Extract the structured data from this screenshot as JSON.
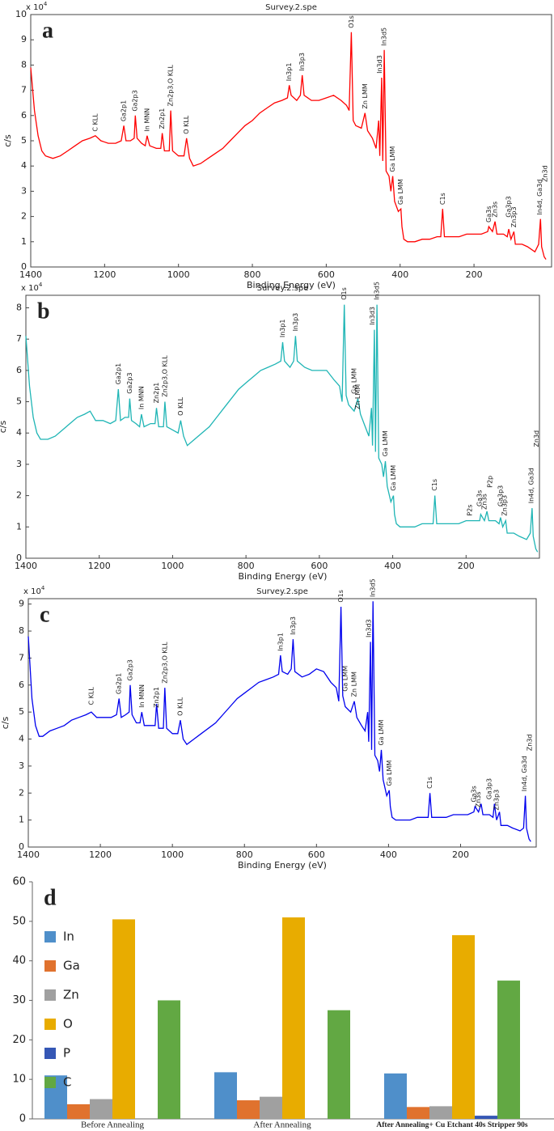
{
  "chart_data": [
    {
      "type": "line",
      "panel_label": "a",
      "title": "Survey.2.spe",
      "y_multiplier": "x 10",
      "y_multiplier_exp": "4",
      "x_label": "Binding Energy (eV)",
      "y_label": "c/s",
      "color": "#ff0000",
      "xlim": [
        1400,
        -10
      ],
      "xticks": [
        1400,
        1200,
        1000,
        800,
        600,
        400,
        200
      ],
      "ylim": [
        0,
        10
      ],
      "yticks": [
        0,
        1,
        2,
        3,
        4,
        5,
        6,
        7,
        8,
        9,
        10
      ],
      "x": [
        1400,
        1390,
        1380,
        1370,
        1360,
        1340,
        1320,
        1300,
        1280,
        1260,
        1240,
        1225,
        1210,
        1190,
        1170,
        1155,
        1148,
        1142,
        1130,
        1120,
        1117,
        1112,
        1100,
        1090,
        1085,
        1078,
        1060,
        1048,
        1044,
        1038,
        1025,
        1021,
        1016,
        1000,
        985,
        978,
        970,
        960,
        940,
        920,
        900,
        880,
        860,
        840,
        820,
        800,
        780,
        760,
        740,
        720,
        705,
        700,
        695,
        680,
        670,
        665,
        660,
        640,
        620,
        600,
        580,
        560,
        545,
        538,
        532,
        527,
        520,
        505,
        495,
        488,
        475,
        465,
        458,
        455,
        450,
        447,
        443,
        438,
        430,
        425,
        420,
        415,
        405,
        398,
        395,
        390,
        380,
        360,
        340,
        320,
        300,
        290,
        285,
        280,
        260,
        240,
        220,
        200,
        180,
        163,
        160,
        150,
        143,
        138,
        120,
        110,
        106,
        100,
        92,
        88,
        70,
        55,
        35,
        25,
        20,
        17,
        10,
        5
      ],
      "values": [
        7.9,
        6.2,
        5.2,
        4.6,
        4.4,
        4.3,
        4.4,
        4.6,
        4.8,
        5.0,
        5.1,
        5.2,
        5.0,
        4.9,
        4.9,
        5.0,
        5.6,
        5.0,
        5.0,
        5.1,
        6.0,
        5.1,
        4.9,
        4.8,
        5.2,
        4.8,
        4.7,
        4.7,
        5.3,
        4.6,
        4.6,
        6.2,
        4.6,
        4.4,
        4.4,
        5.1,
        4.3,
        4.0,
        4.1,
        4.3,
        4.5,
        4.7,
        5.0,
        5.3,
        5.6,
        5.8,
        6.1,
        6.3,
        6.5,
        6.6,
        6.7,
        7.2,
        6.8,
        6.6,
        6.8,
        7.6,
        6.8,
        6.6,
        6.6,
        6.7,
        6.8,
        6.6,
        6.4,
        6.2,
        9.3,
        5.8,
        5.6,
        5.5,
        6.1,
        5.4,
        5.1,
        4.7,
        5.8,
        4.4,
        7.5,
        4.2,
        8.6,
        3.8,
        3.6,
        3.0,
        3.6,
        2.6,
        2.2,
        2.3,
        1.6,
        1.1,
        1.0,
        1.0,
        1.1,
        1.1,
        1.2,
        1.2,
        2.3,
        1.2,
        1.2,
        1.2,
        1.3,
        1.3,
        1.3,
        1.4,
        1.6,
        1.4,
        1.8,
        1.3,
        1.3,
        1.2,
        1.5,
        1.1,
        1.4,
        0.9,
        0.9,
        0.8,
        0.6,
        0.9,
        1.9,
        0.8,
        0.4,
        0.3
      ],
      "annotations": [
        {
          "text": "C KLL",
          "x": 1225,
          "y": 5.3
        },
        {
          "text": "Ga2p1",
          "x": 1148,
          "y": 5.7
        },
        {
          "text": "Ga2p3",
          "x": 1117,
          "y": 6.1
        },
        {
          "text": "In MNN",
          "x": 1085,
          "y": 5.3
        },
        {
          "text": "Zn2p1",
          "x": 1044,
          "y": 5.4
        },
        {
          "text": "Zn2p3,O KLL",
          "x": 1021,
          "y": 6.3
        },
        {
          "text": "O KLL",
          "x": 978,
          "y": 5.2
        },
        {
          "text": "In3p1",
          "x": 700,
          "y": 7.3
        },
        {
          "text": "In3p3",
          "x": 665,
          "y": 7.7
        },
        {
          "text": "O1s",
          "x": 532,
          "y": 9.4
        },
        {
          "text": "Zn LMM",
          "x": 495,
          "y": 6.2
        },
        {
          "text": "In3d3",
          "x": 455,
          "y": 7.6
        },
        {
          "text": "In3d5",
          "x": 443,
          "y": 8.7
        },
        {
          "text": "Ga LMM",
          "x": 420,
          "y": 3.7
        },
        {
          "text": "Ga LMM",
          "x": 398,
          "y": 2.4
        },
        {
          "text": "C1s",
          "x": 285,
          "y": 2.4
        },
        {
          "text": "Ga3s",
          "x": 160,
          "y": 1.7
        },
        {
          "text": "Zn3s",
          "x": 143,
          "y": 1.9
        },
        {
          "text": "Ga3p3",
          "x": 106,
          "y": 1.9
        },
        {
          "text": "Zn3p3",
          "x": 92,
          "y": 1.5
        },
        {
          "text": "In4d, Ga3d",
          "x": 22,
          "y": 2.0
        },
        {
          "text": "Zn3d",
          "x": 8,
          "y": 3.3
        }
      ]
    },
    {
      "type": "line",
      "panel_label": "b",
      "title": "Survey.2.spe",
      "y_multiplier": "x 10",
      "y_multiplier_exp": "4",
      "x_label": "Binding Energy (eV)",
      "y_label": "c/s",
      "color": "#1fb5b5",
      "xlim": [
        1400,
        0
      ],
      "xticks": [
        1400,
        1200,
        1000,
        800,
        600,
        400,
        200
      ],
      "ylim": [
        0,
        8.4
      ],
      "yticks": [
        0,
        1,
        2,
        3,
        4,
        5,
        6,
        7,
        8
      ],
      "x": [
        1400,
        1390,
        1380,
        1370,
        1360,
        1340,
        1320,
        1300,
        1280,
        1260,
        1240,
        1225,
        1210,
        1190,
        1170,
        1155,
        1148,
        1142,
        1130,
        1120,
        1117,
        1112,
        1100,
        1090,
        1085,
        1078,
        1060,
        1048,
        1044,
        1038,
        1025,
        1021,
        1016,
        1000,
        985,
        978,
        970,
        960,
        940,
        920,
        900,
        880,
        860,
        840,
        820,
        800,
        780,
        760,
        740,
        720,
        705,
        700,
        695,
        680,
        670,
        665,
        660,
        640,
        620,
        600,
        580,
        560,
        545,
        538,
        532,
        527,
        520,
        505,
        495,
        488,
        475,
        465,
        458,
        455,
        450,
        447,
        443,
        438,
        430,
        425,
        420,
        415,
        405,
        398,
        395,
        390,
        380,
        360,
        340,
        320,
        300,
        290,
        285,
        280,
        260,
        240,
        220,
        200,
        180,
        163,
        160,
        150,
        143,
        138,
        120,
        110,
        106,
        100,
        92,
        88,
        70,
        55,
        35,
        25,
        20,
        17,
        10,
        5
      ],
      "values": [
        7.1,
        5.5,
        4.5,
        4.0,
        3.8,
        3.8,
        3.9,
        4.1,
        4.3,
        4.5,
        4.6,
        4.7,
        4.4,
        4.4,
        4.3,
        4.4,
        5.4,
        4.4,
        4.5,
        4.5,
        5.1,
        4.4,
        4.3,
        4.2,
        4.6,
        4.2,
        4.3,
        4.3,
        4.8,
        4.2,
        4.2,
        5.0,
        4.2,
        4.1,
        4.0,
        4.4,
        3.9,
        3.6,
        3.8,
        4.0,
        4.2,
        4.5,
        4.8,
        5.1,
        5.4,
        5.6,
        5.8,
        6.0,
        6.1,
        6.2,
        6.3,
        6.9,
        6.3,
        6.1,
        6.3,
        7.1,
        6.3,
        6.1,
        6.0,
        6.0,
        6.0,
        5.7,
        5.5,
        5.0,
        8.1,
        5.2,
        4.9,
        4.7,
        5.1,
        4.6,
        4.2,
        3.9,
        4.8,
        3.6,
        7.3,
        3.4,
        8.1,
        3.2,
        3.0,
        2.6,
        3.1,
        2.3,
        1.8,
        2.0,
        1.4,
        1.1,
        1.0,
        1.0,
        1.0,
        1.1,
        1.1,
        1.1,
        2.0,
        1.1,
        1.1,
        1.1,
        1.1,
        1.2,
        1.2,
        1.2,
        1.4,
        1.2,
        1.5,
        1.2,
        1.2,
        1.1,
        1.3,
        1.0,
        1.2,
        0.8,
        0.8,
        0.7,
        0.6,
        0.8,
        1.6,
        0.7,
        0.3,
        0.2
      ],
      "annotations": [
        {
          "text": "Ga2p1",
          "x": 1148,
          "y": 5.5
        },
        {
          "text": "Ga2p3",
          "x": 1117,
          "y": 5.2
        },
        {
          "text": "In MNN",
          "x": 1085,
          "y": 4.7
        },
        {
          "text": "Zn2p1",
          "x": 1044,
          "y": 4.9
        },
        {
          "text": "Zn2p3,O KLL",
          "x": 1021,
          "y": 5.1
        },
        {
          "text": "O KLL",
          "x": 978,
          "y": 4.5
        },
        {
          "text": "In3p1",
          "x": 700,
          "y": 7.0
        },
        {
          "text": "In3p3",
          "x": 665,
          "y": 7.2
        },
        {
          "text": "O1s",
          "x": 532,
          "y": 8.2
        },
        {
          "text": "Ga LMM",
          "x": 505,
          "y": 5.2
        },
        {
          "text": "Zn LMM",
          "x": 495,
          "y": 4.7
        },
        {
          "text": "In3d3",
          "x": 455,
          "y": 7.4
        },
        {
          "text": "In3d5",
          "x": 443,
          "y": 8.2
        },
        {
          "text": "Ga LMM",
          "x": 420,
          "y": 3.2
        },
        {
          "text": "Ga LMM",
          "x": 398,
          "y": 2.1
        },
        {
          "text": "C1s",
          "x": 285,
          "y": 2.1
        },
        {
          "text": "P2s",
          "x": 190,
          "y": 1.3
        },
        {
          "text": "Ga3s",
          "x": 163,
          "y": 1.6
        },
        {
          "text": "Zn3s",
          "x": 150,
          "y": 1.5
        },
        {
          "text": "P2p",
          "x": 135,
          "y": 2.2
        },
        {
          "text": "Ga3p3",
          "x": 106,
          "y": 1.6
        },
        {
          "text": "Zn3p3",
          "x": 95,
          "y": 1.3
        },
        {
          "text": "In4d, Ga3d",
          "x": 22,
          "y": 1.7
        },
        {
          "text": "Zn3d",
          "x": 8,
          "y": 3.5
        }
      ]
    },
    {
      "type": "line",
      "panel_label": "c",
      "title": "Survey.2.spe",
      "y_multiplier": "x 10",
      "y_multiplier_exp": "4",
      "x_label": "Binding Energy (eV)",
      "y_label": "c/s",
      "color": "#0000ee",
      "xlim": [
        1400,
        -10
      ],
      "xticks": [
        1400,
        1200,
        1000,
        800,
        600,
        400,
        200
      ],
      "ylim": [
        0,
        9.2
      ],
      "yticks": [
        0,
        1,
        2,
        3,
        4,
        5,
        6,
        7,
        8,
        9
      ],
      "x": [
        1400,
        1390,
        1380,
        1370,
        1360,
        1340,
        1320,
        1300,
        1280,
        1260,
        1240,
        1225,
        1210,
        1190,
        1170,
        1155,
        1148,
        1142,
        1130,
        1120,
        1117,
        1112,
        1100,
        1090,
        1085,
        1078,
        1060,
        1048,
        1044,
        1038,
        1025,
        1021,
        1016,
        1000,
        985,
        978,
        970,
        960,
        940,
        920,
        900,
        880,
        860,
        840,
        820,
        800,
        780,
        760,
        740,
        720,
        705,
        700,
        695,
        680,
        670,
        665,
        660,
        640,
        620,
        600,
        580,
        560,
        545,
        538,
        532,
        527,
        520,
        505,
        495,
        488,
        475,
        465,
        458,
        455,
        450,
        447,
        443,
        438,
        430,
        425,
        420,
        415,
        405,
        398,
        395,
        390,
        380,
        360,
        340,
        320,
        300,
        290,
        285,
        280,
        260,
        240,
        220,
        200,
        180,
        163,
        160,
        150,
        143,
        138,
        120,
        110,
        106,
        100,
        92,
        88,
        70,
        55,
        35,
        25,
        20,
        17,
        10,
        5
      ],
      "values": [
        7.8,
        5.5,
        4.5,
        4.1,
        4.1,
        4.3,
        4.4,
        4.5,
        4.7,
        4.8,
        4.9,
        5.0,
        4.8,
        4.8,
        4.8,
        4.9,
        5.5,
        4.8,
        4.9,
        5.0,
        6.0,
        4.9,
        4.6,
        4.6,
        5.0,
        4.5,
        4.5,
        4.5,
        5.3,
        4.4,
        4.4,
        5.9,
        4.4,
        4.2,
        4.2,
        4.7,
        4.0,
        3.8,
        4.0,
        4.2,
        4.4,
        4.6,
        4.9,
        5.2,
        5.5,
        5.7,
        5.9,
        6.1,
        6.2,
        6.3,
        6.4,
        7.1,
        6.5,
        6.4,
        6.6,
        7.7,
        6.5,
        6.3,
        6.4,
        6.6,
        6.5,
        6.1,
        5.9,
        5.4,
        8.9,
        5.6,
        5.2,
        5.0,
        5.4,
        4.8,
        4.5,
        4.3,
        5.0,
        3.9,
        7.6,
        3.6,
        9.1,
        3.4,
        3.2,
        2.8,
        3.6,
        2.5,
        1.9,
        2.1,
        1.5,
        1.1,
        1.0,
        1.0,
        1.0,
        1.1,
        1.1,
        1.1,
        2.0,
        1.1,
        1.1,
        1.1,
        1.2,
        1.2,
        1.2,
        1.3,
        1.5,
        1.3,
        1.6,
        1.2,
        1.2,
        1.1,
        1.6,
        1.0,
        1.3,
        0.8,
        0.8,
        0.7,
        0.6,
        0.7,
        1.9,
        0.7,
        0.3,
        0.2
      ],
      "annotations": [
        {
          "text": "C KLL",
          "x": 1225,
          "y": 5.2
        },
        {
          "text": "Ga2p1",
          "x": 1148,
          "y": 5.6
        },
        {
          "text": "Ga2p3",
          "x": 1117,
          "y": 6.1
        },
        {
          "text": "In MNN",
          "x": 1085,
          "y": 5.1
        },
        {
          "text": "Zn2p1",
          "x": 1044,
          "y": 5.1
        },
        {
          "text": "Zn2p3,O KLL",
          "x": 1021,
          "y": 6.0
        },
        {
          "text": "O KLL",
          "x": 978,
          "y": 4.8
        },
        {
          "text": "In3p1",
          "x": 700,
          "y": 7.2
        },
        {
          "text": "In3p3",
          "x": 665,
          "y": 7.8
        },
        {
          "text": "O1s",
          "x": 532,
          "y": 9.0
        },
        {
          "text": "Ga LMM",
          "x": 520,
          "y": 5.7
        },
        {
          "text": "Zn LMM",
          "x": 495,
          "y": 5.5
        },
        {
          "text": "In3d3",
          "x": 455,
          "y": 7.7
        },
        {
          "text": "In3d5",
          "x": 443,
          "y": 9.2
        },
        {
          "text": "Ga LMM",
          "x": 420,
          "y": 3.7
        },
        {
          "text": "Ga LMM",
          "x": 398,
          "y": 2.2
        },
        {
          "text": "C1s",
          "x": 285,
          "y": 2.1
        },
        {
          "text": "Ga3s",
          "x": 163,
          "y": 1.6
        },
        {
          "text": "Zn3s",
          "x": 150,
          "y": 1.4
        },
        {
          "text": "Ga3p3",
          "x": 120,
          "y": 1.7
        },
        {
          "text": "Zn3p3",
          "x": 100,
          "y": 1.3
        },
        {
          "text": "In4d, Ga3d",
          "x": 22,
          "y": 2.0
        },
        {
          "text": "Zn3d",
          "x": 8,
          "y": 3.5
        }
      ]
    },
    {
      "type": "bar",
      "panel_label": "d",
      "categories": [
        "Before Annealing",
        "After Annealing",
        "After Annealing+ Cu Etchant 40s Stripper 90s"
      ],
      "ylim": [
        0,
        60
      ],
      "yticks": [
        0,
        10,
        20,
        30,
        40,
        50,
        60
      ],
      "legend": "upper left",
      "series": [
        {
          "name": "In",
          "color": "#4f8fca",
          "values": [
            11,
            11.8,
            11.5
          ]
        },
        {
          "name": "Ga",
          "color": "#e0722e",
          "values": [
            3.7,
            4.7,
            3
          ]
        },
        {
          "name": "Zn",
          "color": "#a0a0a0",
          "values": [
            5,
            5.6,
            3.2
          ]
        },
        {
          "name": "O",
          "color": "#e8ac00",
          "values": [
            50.5,
            51,
            46.5
          ]
        },
        {
          "name": "P",
          "color": "#3557b5",
          "values": [
            0,
            0,
            0.8
          ]
        },
        {
          "name": "C",
          "color": "#62a843",
          "values": [
            30,
            27.5,
            35
          ]
        }
      ]
    }
  ]
}
